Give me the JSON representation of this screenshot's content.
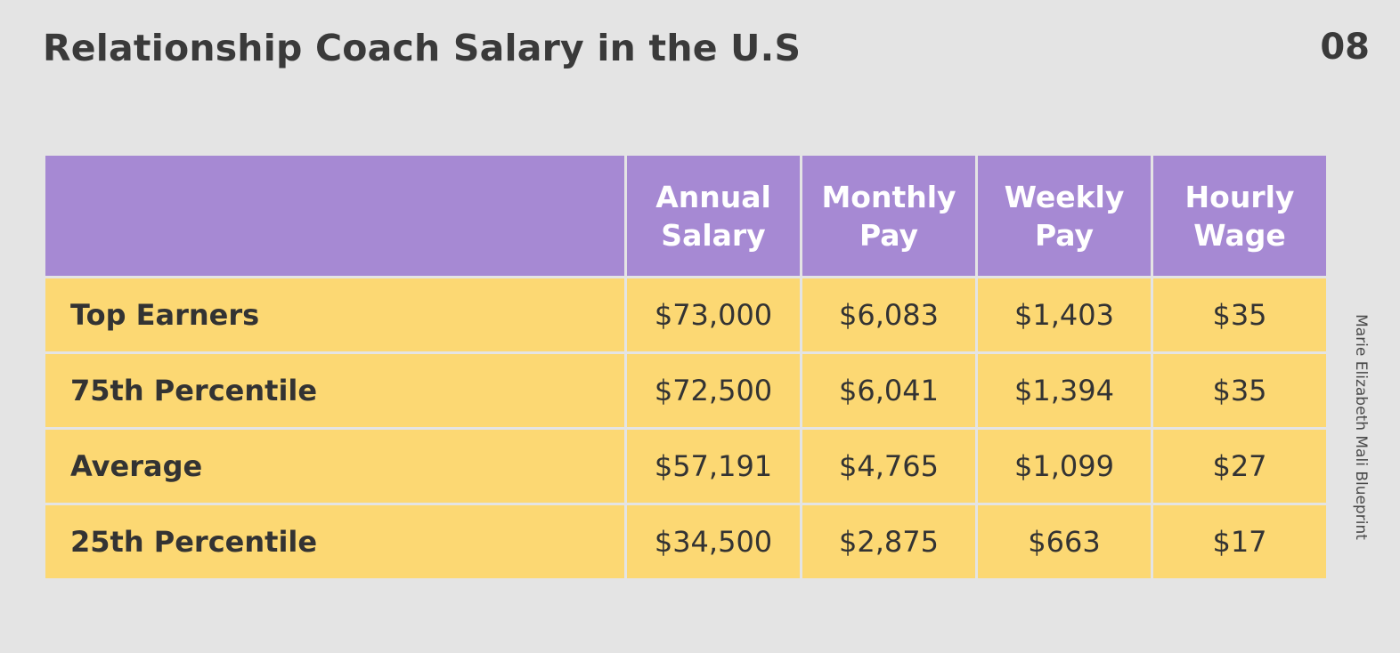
{
  "slide": {
    "title": "Relationship Coach Salary in the U.S",
    "page_number": "08",
    "credit": "Marie Elizabeth Mali Blueprint"
  },
  "table": {
    "columns": [
      {
        "line1": "Annual",
        "line2": "Salary"
      },
      {
        "line1": "Monthly",
        "line2": "Pay"
      },
      {
        "line1": "Weekly",
        "line2": "Pay"
      },
      {
        "line1": "Hourly",
        "line2": "Wage"
      }
    ],
    "rows": [
      {
        "label": "Top Earners",
        "values": [
          "$73,000",
          "$6,083",
          "$1,403",
          "$35"
        ]
      },
      {
        "label": "75th Percentile",
        "values": [
          "$72,500",
          "$6,041",
          "$1,394",
          "$35"
        ]
      },
      {
        "label": "Average",
        "values": [
          "$57,191",
          "$4,765",
          "$1,099",
          "$27"
        ]
      },
      {
        "label": "25th Percentile",
        "values": [
          "$34,500",
          "$2,875",
          "$663",
          "$17"
        ]
      }
    ]
  },
  "colors": {
    "background": "#e4e4e4",
    "header": "#a689d3",
    "cells": "#fcd873",
    "text": "#3a3a3a"
  }
}
